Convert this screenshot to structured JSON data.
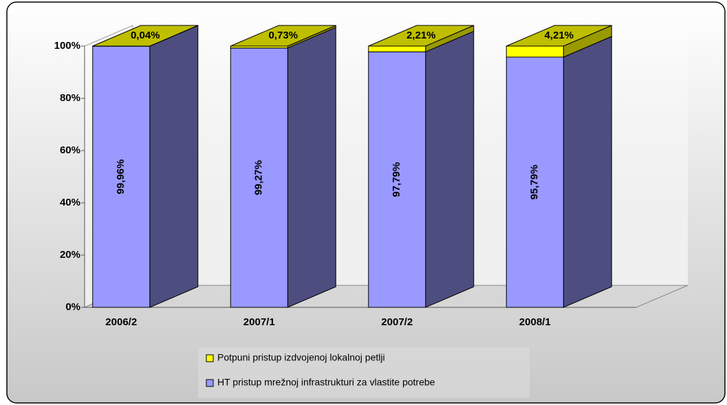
{
  "chart_data": {
    "type": "bar3d_stacked",
    "categories": [
      "2006/2",
      "2007/1",
      "2007/2",
      "2008/1"
    ],
    "series": [
      {
        "name": "HT pristup mrežnoj infrastrukturi za vlastite potrebe",
        "color": "#9999ff",
        "values": [
          99.96,
          99.27,
          97.79,
          95.79
        ],
        "value_labels": [
          "99,96%",
          "99,27%",
          "97,79%",
          "95,79%"
        ]
      },
      {
        "name": "Potpuni pristup izdvojenoj lokalnoj petlji",
        "color": "#ffff00",
        "values": [
          0.04,
          0.73,
          2.21,
          4.21
        ],
        "value_labels": [
          "0,04%",
          "0,73%",
          "2,21%",
          "4,21%"
        ]
      }
    ],
    "ylim": [
      0,
      100
    ],
    "yticks": [
      {
        "value": 0,
        "label": "0%"
      },
      {
        "value": 20,
        "label": "20%"
      },
      {
        "value": 40,
        "label": "40%"
      },
      {
        "value": 60,
        "label": "60%"
      },
      {
        "value": 80,
        "label": "80%"
      },
      {
        "value": 100,
        "label": "100%"
      }
    ]
  }
}
